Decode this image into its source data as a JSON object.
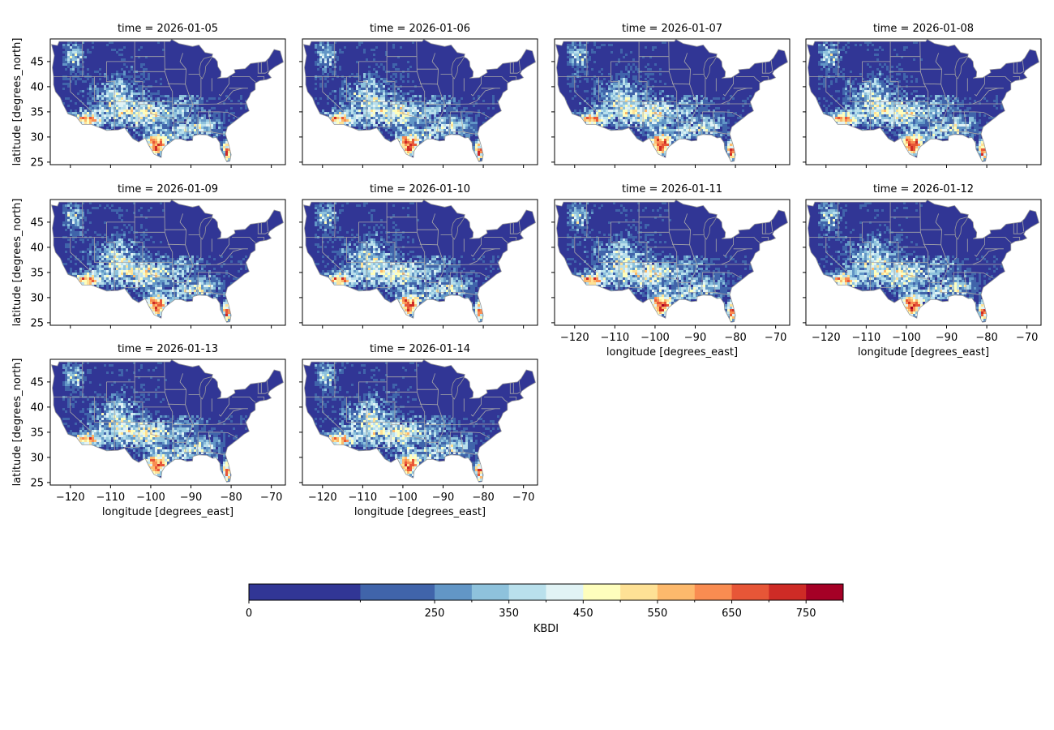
{
  "chart_data": {
    "type": "heatmap",
    "panels": [
      {
        "title": "time = 2026-01-05"
      },
      {
        "title": "time = 2026-01-06"
      },
      {
        "title": "time = 2026-01-07"
      },
      {
        "title": "time = 2026-01-08"
      },
      {
        "title": "time = 2026-01-09"
      },
      {
        "title": "time = 2026-01-10"
      },
      {
        "title": "time = 2026-01-11"
      },
      {
        "title": "time = 2026-01-12"
      },
      {
        "title": "time = 2026-01-13"
      },
      {
        "title": "time = 2026-01-14"
      }
    ],
    "xlabel": "longitude [degrees_east]",
    "ylabel": "latitude [degrees_north]",
    "xlim": [
      -125,
      -66.5
    ],
    "ylim": [
      24.5,
      49.5
    ],
    "xticks": [
      -120,
      -110,
      -100,
      -90,
      -80,
      -70
    ],
    "xtick_labels": [
      "−120",
      "−110",
      "−100",
      "−90",
      "−80",
      "−70"
    ],
    "yticks": [
      25,
      30,
      35,
      40,
      45
    ],
    "ytick_labels": [
      "25",
      "30",
      "35",
      "40",
      "45"
    ],
    "colorbar": {
      "label": "KBDI",
      "orientation": "horizontal",
      "range": [
        0,
        800
      ],
      "boundaries": [
        0,
        150,
        250,
        300,
        350,
        400,
        450,
        500,
        550,
        600,
        650,
        700,
        750,
        800
      ],
      "tick_labels": [
        "0",
        "250",
        "350",
        "450",
        "550",
        "650",
        "750"
      ],
      "tick_values": [
        0,
        250,
        350,
        450,
        550,
        650,
        750
      ],
      "colors": [
        "#313695",
        "#4064aa",
        "#6296c6",
        "#8ec2dc",
        "#b9e0ec",
        "#e1f3f5",
        "#fefebd",
        "#fee195",
        "#fdb96c",
        "#f98c51",
        "#e75637",
        "#ce2b26",
        "#a50026"
      ]
    },
    "grid": false
  }
}
